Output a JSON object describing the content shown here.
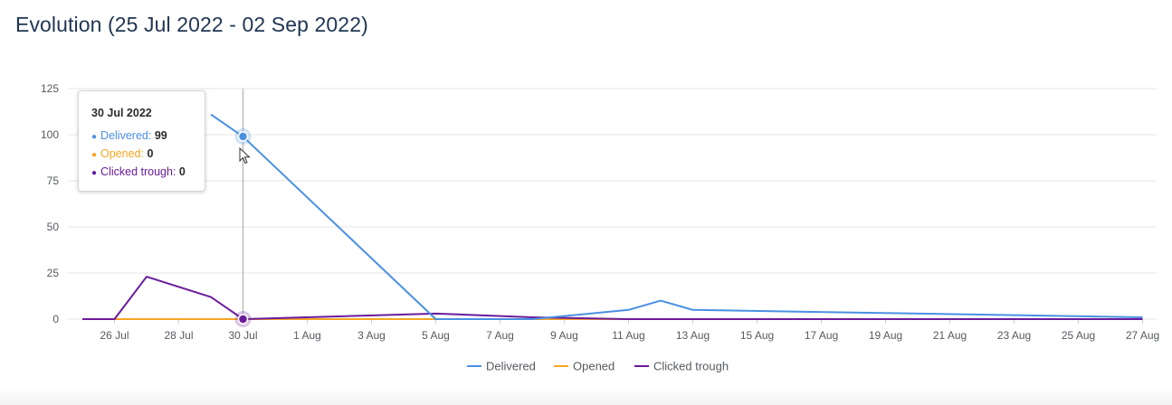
{
  "title": "Evolution (25 Jul 2022 - 02 Sep 2022)",
  "colors": {
    "delivered": "#4a90e2",
    "opened": "#f5a623",
    "clicked": "#6a1b9a",
    "grid": "#e6e6e6",
    "crosshair": "#bdbdbd"
  },
  "chart_data": {
    "type": "line",
    "title": "Evolution (25 Jul 2022 - 02 Sep 2022)",
    "xlabel": "",
    "ylabel": "",
    "ylim": [
      0,
      125
    ],
    "y_ticks": [
      125,
      100,
      75,
      50,
      25,
      0
    ],
    "x_ticks": [
      "26 Jul",
      "28 Jul",
      "30 Jul",
      "1 Aug",
      "3 Aug",
      "5 Aug",
      "7 Aug",
      "9 Aug",
      "11 Aug",
      "13 Aug",
      "15 Aug",
      "17 Aug",
      "19 Aug",
      "21 Aug",
      "23 Aug",
      "25 Aug",
      "27 Aug"
    ],
    "grid": true,
    "legend_position": "bottom",
    "series": [
      {
        "name": "Delivered",
        "color": "#4a90e2",
        "x": [
          "29 Jul",
          "30 Jul",
          "5 Aug",
          "8 Aug",
          "11 Aug",
          "12 Aug",
          "13 Aug",
          "27 Aug"
        ],
        "values": [
          111,
          99,
          0,
          0,
          5,
          10,
          5,
          1
        ]
      },
      {
        "name": "Opened",
        "color": "#f5a623",
        "x": [
          "25 Jul",
          "26 Jul",
          "27 Jul",
          "28 Jul",
          "29 Jul",
          "30 Jul",
          "5 Aug",
          "8 Aug",
          "27 Aug"
        ],
        "values": [
          0,
          0,
          0,
          0,
          0,
          0,
          0,
          0,
          0
        ]
      },
      {
        "name": "Clicked trough",
        "color": "#6a1b9a",
        "x": [
          "25 Jul",
          "26 Jul",
          "27 Jul",
          "29 Jul",
          "30 Jul",
          "5 Aug",
          "8 Aug",
          "11 Aug",
          "27 Aug"
        ],
        "values": [
          0,
          0,
          23,
          12,
          0,
          3,
          1,
          0,
          0
        ]
      }
    ],
    "tooltip": {
      "date": "30 Jul 2022",
      "rows": [
        {
          "label": "Delivered",
          "value": "99",
          "color": "#4a90e2"
        },
        {
          "label": "Opened",
          "value": "0",
          "color": "#f5a623"
        },
        {
          "label": "Clicked trough",
          "value": "0",
          "color": "#6a1b9a"
        }
      ]
    }
  }
}
